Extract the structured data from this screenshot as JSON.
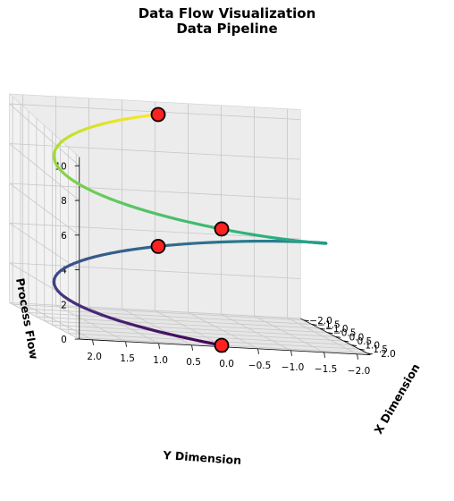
{
  "chart_data": {
    "type": "line3d",
    "title": "Data Flow Visualization",
    "subtitle": "Data Pipeline",
    "xlabel": "X Dimension",
    "ylabel": "Y Dimension",
    "zlabel": "Process Flow",
    "xlim": [
      -2.2,
      2.2
    ],
    "ylim": [
      -2.2,
      2.2
    ],
    "zlim": [
      0,
      10.5
    ],
    "x_ticks": [
      "2.0",
      "1.5",
      "1.0",
      "0.5",
      "0.0",
      "−0.5",
      "−1.0",
      "−1.5",
      "−2.0"
    ],
    "y_ticks": [
      "2.0",
      "1.5",
      "1.0",
      "0.5",
      "0.0",
      "−0.5",
      "−1.0",
      "−1.5",
      "−2.0"
    ],
    "z_ticks": [
      "0",
      "2",
      "4",
      "6",
      "8",
      "10"
    ],
    "x_tick_values": [
      2.0,
      1.5,
      1.0,
      0.5,
      0.0,
      -0.5,
      -1.0,
      -1.5,
      -2.0
    ],
    "y_tick_values": [
      2.0,
      1.5,
      1.0,
      0.5,
      0.0,
      -0.5,
      -1.0,
      -1.5,
      -2.0
    ],
    "z_tick_values": [
      0,
      2,
      4,
      6,
      8,
      10
    ],
    "grid": true,
    "series": [
      {
        "style": "helix",
        "colormap": "viridis",
        "radius": 2.0,
        "z_start": 0,
        "z_end": 10,
        "turns": 1.5,
        "start_angle_deg": 0,
        "n_points": 120
      }
    ],
    "highlight_points": [
      {
        "x": 2.0,
        "y": 0.0,
        "z": 0.0,
        "color": "#ff2020"
      },
      {
        "x": -2.0,
        "y": 0.0,
        "z": 3.33,
        "color": "#ff2020"
      },
      {
        "x": 2.0,
        "y": 0.0,
        "z": 6.67,
        "color": "#ff2020"
      },
      {
        "x": -2.0,
        "y": 0.0,
        "z": 10.0,
        "color": "#ff2020"
      }
    ]
  }
}
